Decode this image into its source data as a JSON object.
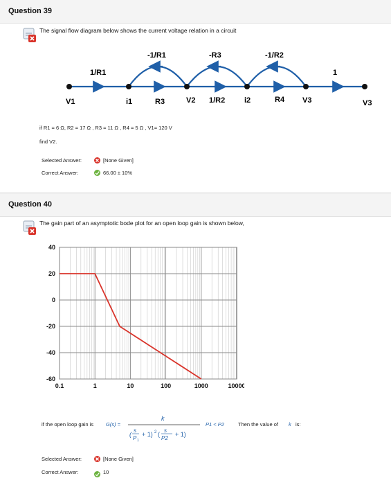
{
  "q39": {
    "title": "Question 39",
    "prompt": "The signal flow diagram below shows the current voltage relation in a circuit",
    "diagram": {
      "nodes": [
        "V1",
        "i1",
        "V2",
        "i2",
        "V3",
        "V3"
      ],
      "forward_labels": [
        "1/R1",
        "R3",
        "1/R2",
        "R4",
        "1"
      ],
      "feedback_labels": [
        "-1/R1",
        "-R3",
        "-1/R2"
      ]
    },
    "given": "if R1 = 6 Ω,  R2 = 17 Ω ,  R3 = 11 Ω ,  R4 = 5 Ω , V1= 120 V",
    "ask": "find V2.",
    "selected_label": "Selected Answer:",
    "selected_value": "[None Given]",
    "correct_label": "Correct Answer:",
    "correct_value": "66.00 ± 10%"
  },
  "q40": {
    "title": "Question 40",
    "prompt": "The gain part of an asymptotic bode plot for an open loop gain is shown below,",
    "question_prefix": "if the open loop gain is",
    "gs": "G(s) =",
    "numerator": "k",
    "cond": "P1 < P2",
    "tail": "Then the value of",
    "kvar": "k",
    "tail_end": "is:",
    "selected_label": "Selected Answer:",
    "selected_value": "[None Given]",
    "correct_label": "Correct Answer:",
    "correct_value": "10"
  },
  "chart_data": {
    "type": "line",
    "title": "",
    "xlabel": "",
    "ylabel": "",
    "xscale": "log",
    "xlim": [
      0.1,
      10000
    ],
    "ylim": [
      -60,
      40
    ],
    "x_ticks": [
      "0.1",
      "1",
      "10",
      "100",
      "1000",
      "10000"
    ],
    "y_ticks": [
      "40",
      "20",
      "0",
      "-20",
      "-40",
      "-60"
    ],
    "grid": true,
    "series": [
      {
        "color": "#d9342b",
        "x": [
          0.1,
          1,
          5,
          1000
        ],
        "y": [
          20,
          20,
          -20,
          -60
        ]
      }
    ]
  },
  "colors": {
    "accent": "#1f5fa8",
    "error": "#d9342b",
    "success": "#6cb33f",
    "curve": "#d9342b"
  }
}
